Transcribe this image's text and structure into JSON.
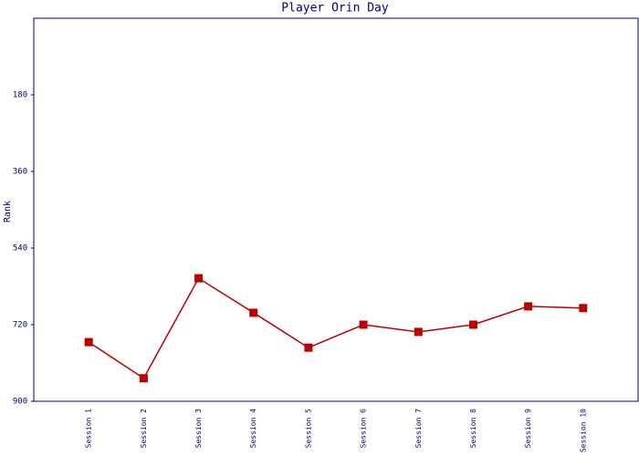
{
  "chart_data": {
    "type": "line",
    "title": "Player Orin Day",
    "y_label": "Rank",
    "categories": [
      "Session 1",
      "Session 2",
      "Session 3",
      "Session 4",
      "Session 5",
      "Session 6",
      "Session 7",
      "Session 8",
      "Session 9",
      "Session 10"
    ],
    "series": [
      {
        "name": "Rank",
        "color": "#bb0000",
        "values": [
          761,
          846,
          611,
          692,
          774,
          720,
          737,
          720,
          677,
          681
        ]
      }
    ],
    "ylim": [
      900,
      0
    ],
    "yticks": [
      180,
      360,
      540,
      720,
      900
    ]
  }
}
